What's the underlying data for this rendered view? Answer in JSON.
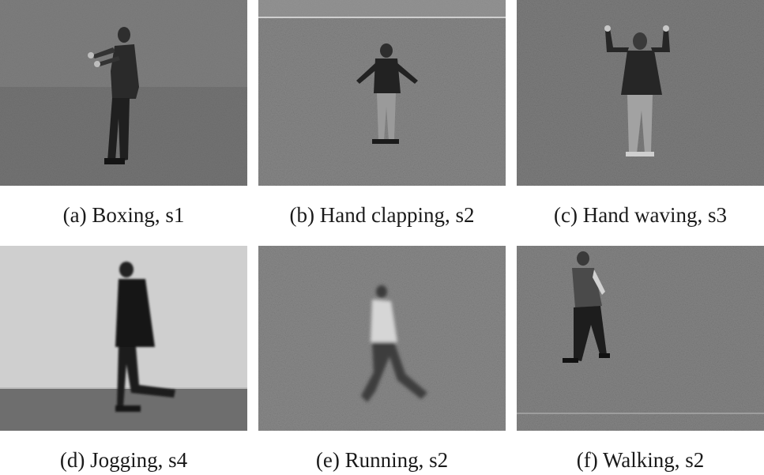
{
  "panels": [
    {
      "caption": "(a)  Boxing, s1"
    },
    {
      "caption": "(b)  Hand clapping, s2"
    },
    {
      "caption": "(c)  Hand waving, s3"
    },
    {
      "caption": "(d)  Jogging, s4"
    },
    {
      "caption": "(e)  Running, s2"
    },
    {
      "caption": "(f)  Walking, s2"
    }
  ]
}
